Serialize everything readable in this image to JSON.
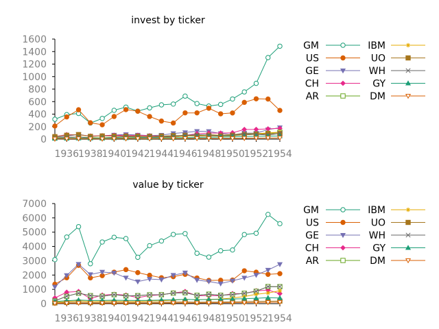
{
  "chart_data": [
    {
      "type": "line",
      "title": "invest by ticker",
      "xlabel": "",
      "ylabel": "",
      "xlim": [
        1935,
        1954
      ],
      "ylim": [
        0,
        1600
      ],
      "xticks": [
        1936,
        1938,
        1940,
        1942,
        1944,
        1946,
        1948,
        1950,
        1952,
        1954
      ],
      "yticks": [
        0,
        200,
        400,
        600,
        800,
        1000,
        1200,
        1400,
        1600
      ],
      "grid": false,
      "legend": "right",
      "x": [
        1935,
        1936,
        1937,
        1938,
        1939,
        1940,
        1941,
        1942,
        1943,
        1944,
        1945,
        1946,
        1947,
        1948,
        1949,
        1950,
        1951,
        1952,
        1953,
        1954
      ],
      "series": [
        {
          "name": "GM",
          "color": "#1b9e77",
          "marker": "circle-open",
          "values": [
            318,
            392,
            411,
            258,
            331,
            461,
            512,
            448,
            500,
            548,
            561,
            688,
            569,
            529,
            555,
            642,
            755,
            892,
            1304,
            1486
          ]
        },
        {
          "name": "US",
          "color": "#d95f02",
          "marker": "circle-filled",
          "values": [
            209,
            355,
            470,
            262,
            230,
            362,
            472,
            446,
            362,
            289,
            258,
            420,
            420,
            494,
            405,
            419,
            588,
            645,
            641,
            459
          ]
        },
        {
          "name": "GE",
          "color": "#7570b3",
          "marker": "triangle-down-filled",
          "values": [
            33,
            45,
            77,
            45,
            52,
            67,
            75,
            67,
            56,
            65,
            91,
            106,
            126,
            124,
            91,
            71,
            98,
            96,
            152,
            184
          ]
        },
        {
          "name": "CH",
          "color": "#e7298a",
          "marker": "diamond-filled",
          "values": [
            40,
            72,
            68,
            50,
            55,
            63,
            57,
            61,
            54,
            49,
            49,
            60,
            87,
            97,
            97,
            102,
            155,
            156,
            164,
            172
          ]
        },
        {
          "name": "AR",
          "color": "#66a61e",
          "marker": "square-open",
          "values": [
            25,
            24,
            34,
            25,
            20,
            27,
            36,
            42,
            40,
            48,
            55,
            56,
            48,
            52,
            48,
            54,
            69,
            80,
            92,
            111
          ]
        },
        {
          "name": "IBM",
          "color": "#e6ab02",
          "marker": "asterisk",
          "values": [
            20,
            26,
            35,
            22,
            21,
            30,
            35,
            29,
            27,
            29,
            30,
            49,
            58,
            73,
            61,
            72,
            88,
            89,
            100,
            112
          ]
        },
        {
          "name": "UO",
          "color": "#a6761d",
          "marker": "square-filled",
          "values": [
            40,
            62,
            72,
            44,
            51,
            49,
            48,
            47,
            43,
            48,
            55,
            61,
            52,
            54,
            52,
            60,
            69,
            78,
            85,
            90
          ]
        },
        {
          "name": "WH",
          "color": "#666666",
          "marker": "x",
          "values": [
            12,
            26,
            36,
            20,
            18,
            27,
            39,
            33,
            28,
            35,
            42,
            61,
            70,
            70,
            55,
            65,
            84,
            78,
            66,
            90
          ]
        },
        {
          "name": "GY",
          "color": "#1b9e77",
          "marker": "triangle-up-filled",
          "values": [
            10,
            12,
            14,
            15,
            16,
            17,
            19,
            20,
            20,
            21,
            23,
            25,
            27,
            30,
            32,
            35,
            40,
            45,
            48,
            50
          ]
        },
        {
          "name": "DM",
          "color": "#d95f02",
          "marker": "triangle-down-open",
          "values": [
            3,
            5,
            7,
            5,
            4,
            6,
            8,
            7,
            6,
            7,
            8,
            10,
            12,
            11,
            10,
            12,
            14,
            16,
            18,
            20
          ]
        }
      ]
    },
    {
      "type": "line",
      "title": "value by ticker",
      "xlabel": "",
      "ylabel": "",
      "xlim": [
        1935,
        1954
      ],
      "ylim": [
        0,
        7000
      ],
      "xticks": [
        1936,
        1938,
        1940,
        1942,
        1944,
        1946,
        1948,
        1950,
        1952,
        1954
      ],
      "yticks": [
        0,
        1000,
        2000,
        3000,
        4000,
        5000,
        6000,
        7000
      ],
      "grid": false,
      "legend": "right",
      "x": [
        1935,
        1936,
        1937,
        1938,
        1939,
        1940,
        1941,
        1942,
        1943,
        1944,
        1945,
        1946,
        1947,
        1948,
        1949,
        1950,
        1951,
        1952,
        1953,
        1954
      ],
      "series": [
        {
          "name": "GM",
          "color": "#1b9e77",
          "marker": "circle-open",
          "values": [
            3078,
            4662,
            5387,
            2792,
            4313,
            4644,
            4551,
            3244,
            4054,
            4379,
            4841,
            4901,
            3526,
            3255,
            3700,
            3756,
            4834,
            4925,
            6242,
            5594
          ]
        },
        {
          "name": "US",
          "color": "#d95f02",
          "marker": "circle-filled",
          "values": [
            1362,
            1807,
            2676,
            1801,
            1957,
            2203,
            2380,
            2169,
            1986,
            1814,
            1887,
            2051,
            1796,
            1625,
            1637,
            1650,
            2300,
            2200,
            2050,
            2100
          ]
        },
        {
          "name": "GE",
          "color": "#7570b3",
          "marker": "triangle-down-filled",
          "values": [
            1171,
            1977,
            2760,
            2040,
            2212,
            2150,
            1810,
            1540,
            1720,
            1680,
            1990,
            2160,
            1650,
            1550,
            1400,
            1600,
            1800,
            2000,
            2350,
            2750
          ]
        },
        {
          "name": "CH",
          "color": "#e7298a",
          "marker": "diamond-filled",
          "values": [
            400,
            800,
            850,
            350,
            600,
            650,
            600,
            420,
            560,
            620,
            750,
            850,
            550,
            560,
            550,
            700,
            700,
            900,
            950,
            700
          ]
        },
        {
          "name": "AR",
          "color": "#66a61e",
          "marker": "square-open",
          "values": [
            191,
            516,
            729,
            560,
            520,
            628,
            537,
            561,
            617,
            626,
            737,
            760,
            581,
            662,
            583,
            635,
            724,
            864,
            1193,
            1188
          ]
        },
        {
          "name": "IBM",
          "color": "#e6ab02",
          "marker": "asterisk",
          "values": [
            100,
            150,
            200,
            150,
            170,
            180,
            160,
            150,
            190,
            200,
            240,
            300,
            280,
            300,
            320,
            400,
            500,
            650,
            750,
            900
          ]
        },
        {
          "name": "UO",
          "color": "#a6761d",
          "marker": "square-filled",
          "values": [
            50,
            80,
            110,
            70,
            80,
            90,
            85,
            80,
            90,
            100,
            110,
            120,
            100,
            110,
            110,
            130,
            150,
            160,
            170,
            180
          ]
        },
        {
          "name": "WH",
          "color": "#666666",
          "marker": "x",
          "values": [
            191,
            516,
            729,
            560,
            520,
            628,
            537,
            561,
            617,
            626,
            737,
            760,
            581,
            662,
            583,
            635,
            724,
            864,
            1193,
            1188
          ]
        },
        {
          "name": "GY",
          "color": "#1b9e77",
          "marker": "triangle-up-filled",
          "values": [
            150,
            200,
            250,
            220,
            230,
            240,
            230,
            220,
            230,
            250,
            270,
            300,
            280,
            290,
            300,
            320,
            350,
            380,
            410,
            400
          ]
        },
        {
          "name": "DM",
          "color": "#d95f02",
          "marker": "triangle-down-open",
          "values": [
            20,
            30,
            40,
            30,
            35,
            40,
            38,
            35,
            40,
            45,
            50,
            55,
            50,
            55,
            60,
            65,
            70,
            80,
            90,
            100
          ]
        }
      ]
    }
  ]
}
